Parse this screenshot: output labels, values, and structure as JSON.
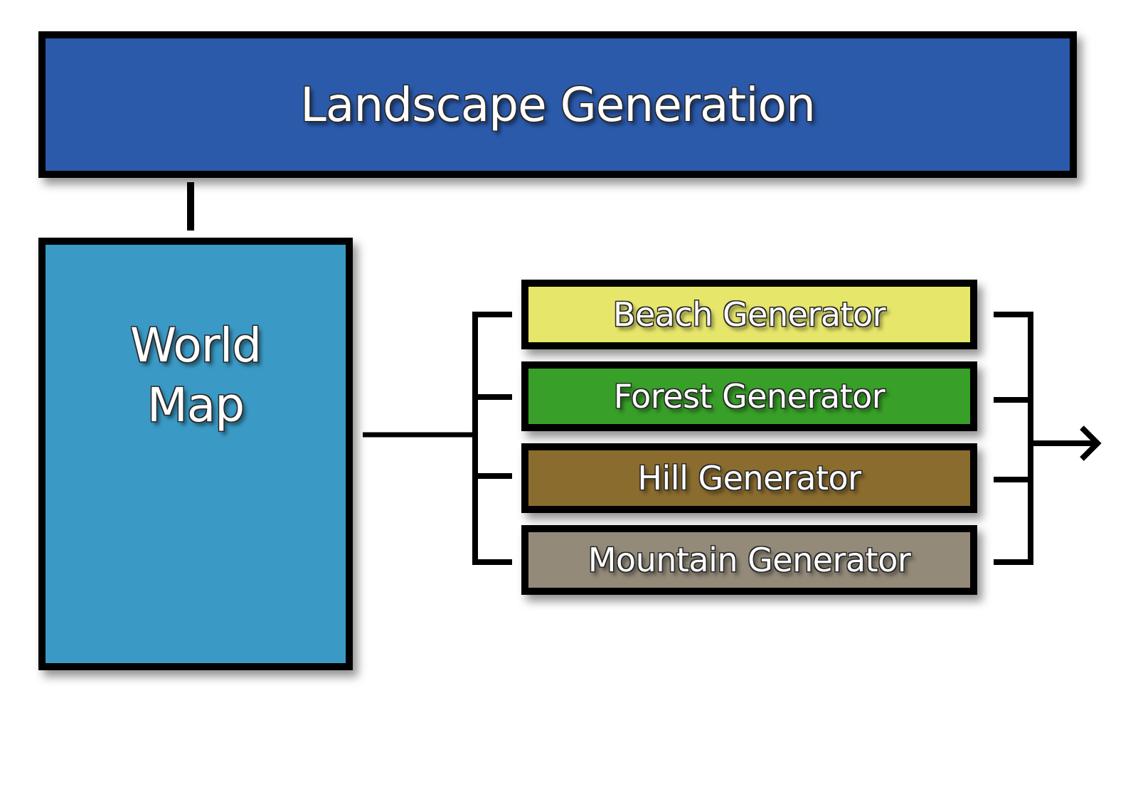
{
  "diagram": {
    "title": "Landscape Generation",
    "world_map": {
      "lines": [
        "World",
        "Map"
      ]
    },
    "generators": [
      {
        "label": "Beach Generator",
        "color": "#e6e66b"
      },
      {
        "label": "Forest Generator",
        "color": "#38a028"
      },
      {
        "label": "Hill Generator",
        "color": "#8a6c2e"
      },
      {
        "label": "Mountain Generator",
        "color": "#938a79"
      }
    ],
    "colors": {
      "title_fill": "#2b5aab",
      "world_map_fill": "#3a9ac5",
      "border": "#000000",
      "connector": "#000000"
    }
  }
}
